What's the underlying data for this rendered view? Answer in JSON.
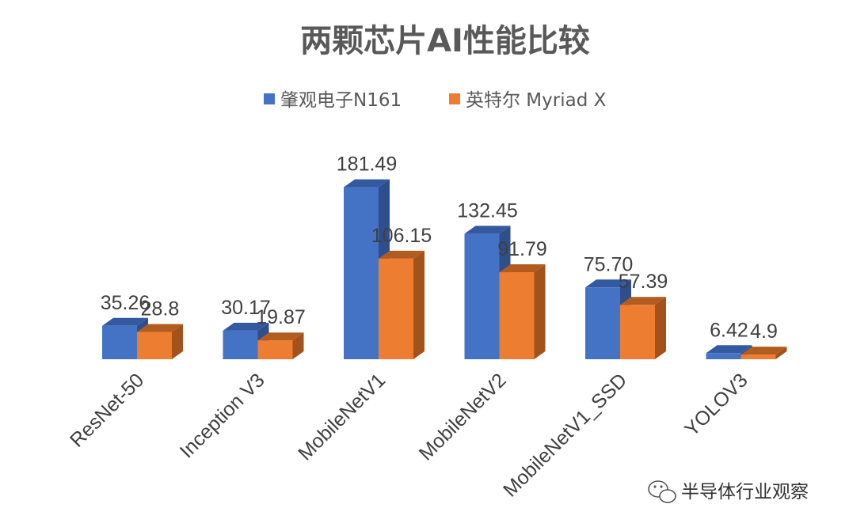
{
  "chart_data": {
    "type": "bar",
    "title": "两颗芯片AI性能比较",
    "categories": [
      "ResNet-50",
      "Inception V3",
      "MobileNetV1",
      "MobileNetV2",
      "MobileNetV1_SSD",
      "YOLOV3"
    ],
    "series": [
      {
        "name": "肇观电子N161",
        "color": "#4472C4",
        "values": [
          35.26,
          30.17,
          181.49,
          132.45,
          75.7,
          6.42
        ],
        "labels": [
          "35.26",
          "30.17",
          "181.49",
          "132.45",
          "75.70",
          "6.42"
        ]
      },
      {
        "name": "英特尔 Myriad X",
        "color": "#ED7D31",
        "values": [
          28.8,
          19.87,
          106.15,
          91.79,
          57.39,
          4.9
        ],
        "labels": [
          "28.8",
          "19.87",
          "106.15",
          "91.79",
          "57.39",
          "4.9"
        ]
      }
    ],
    "style": "3d-clustered-column",
    "grid": false,
    "legend_position": "top"
  },
  "watermark": {
    "text": "半导体行业观察",
    "icon": "wechat-icon"
  }
}
